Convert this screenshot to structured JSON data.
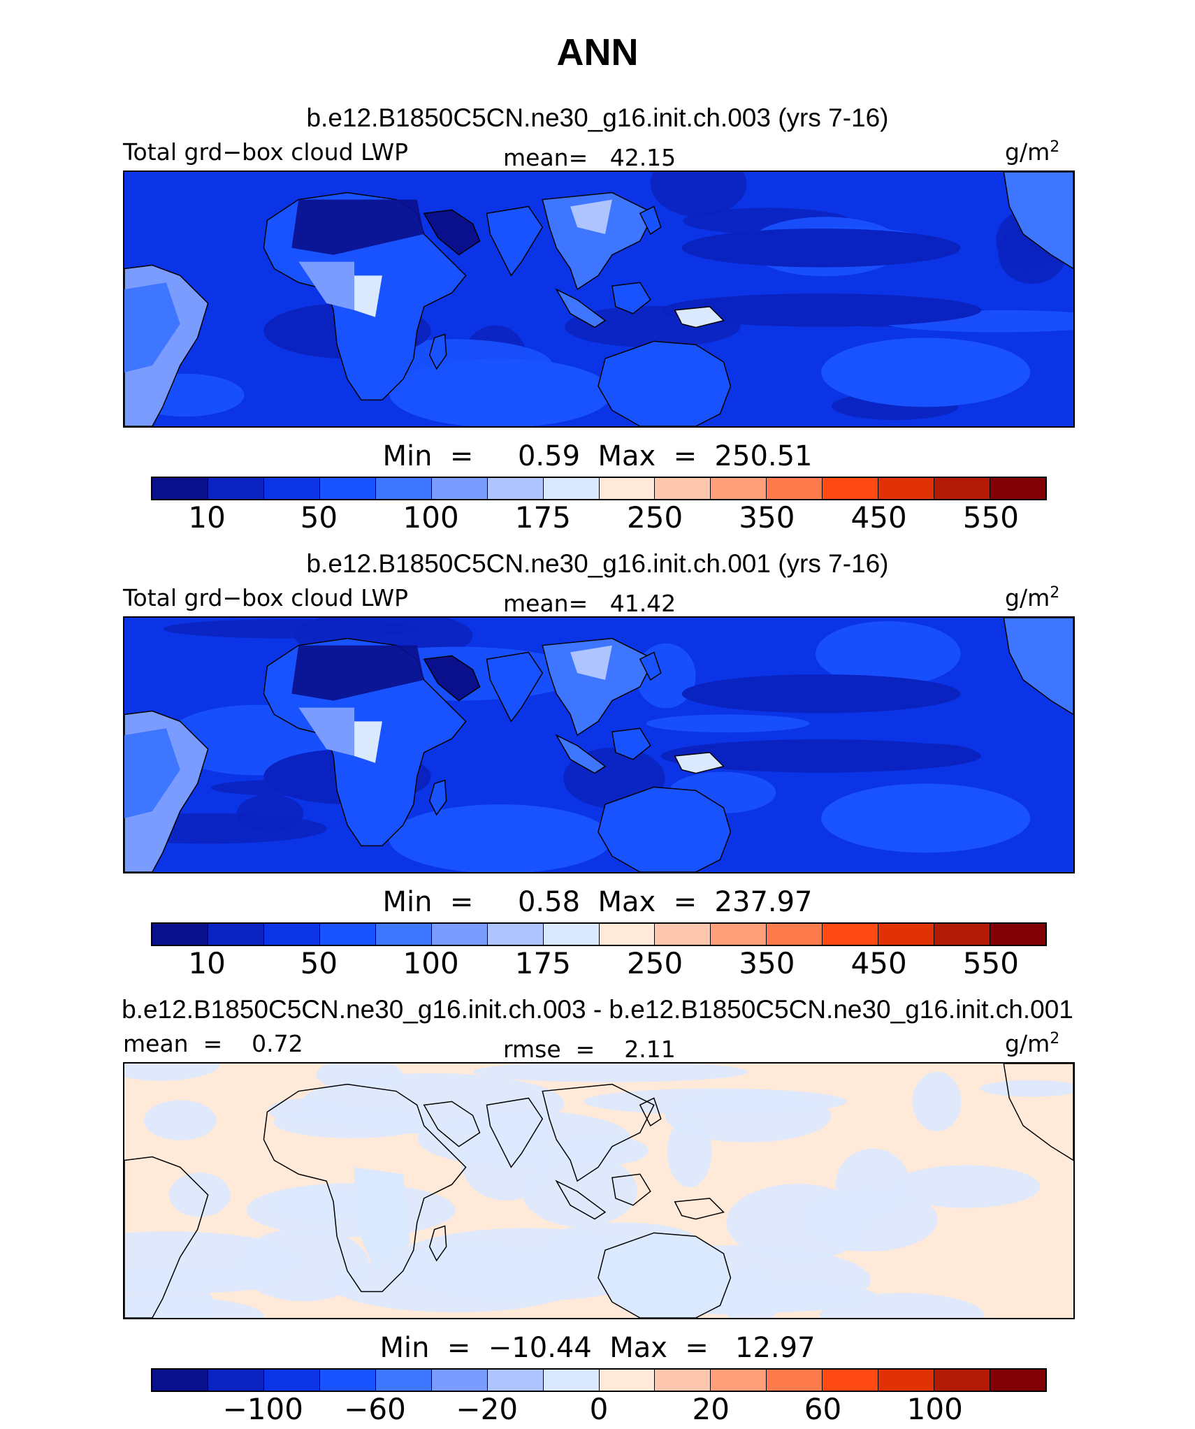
{
  "title": "ANN",
  "palette": [
    "#0a0f8c",
    "#0a23c0",
    "#0a34e6",
    "#1952ff",
    "#3f76ff",
    "#7b9cff",
    "#adc4ff",
    "#dbe9ff",
    "#ffe9d8",
    "#ffc8ae",
    "#ffa07a",
    "#ff7a4c",
    "#ff4a14",
    "#e03205",
    "#b31a05",
    "#800005"
  ],
  "panels": [
    {
      "case_title": "b.e12.B1850C5CN.ne30_g16.init.ch.003 (yrs 7-16)",
      "left_label": "Total grd−box cloud LWP",
      "center_label": "mean=   42.15",
      "units_label": "g/m",
      "units_sup": "2",
      "minmax": "Min  =     0.59  Max  =  250.51",
      "ticks": [
        "10",
        "50",
        "100",
        "175",
        "250",
        "350",
        "450",
        "550"
      ],
      "field": "abs"
    },
    {
      "case_title": "b.e12.B1850C5CN.ne30_g16.init.ch.001 (yrs 7-16)",
      "left_label": "Total grd−box cloud LWP",
      "center_label": "mean=   41.42",
      "units_label": "g/m",
      "units_sup": "2",
      "minmax": "Min  =     0.58  Max  =  237.97",
      "ticks": [
        "10",
        "50",
        "100",
        "175",
        "250",
        "350",
        "450",
        "550"
      ],
      "field": "abs"
    },
    {
      "case_title": "b.e12.B1850C5CN.ne30_g16.init.ch.003 - b.e12.B1850C5CN.ne30_g16.init.ch.001",
      "left_label": "mean  =    0.72",
      "center_label": "rmse  =    2.11",
      "units_label": "g/m",
      "units_sup": "2",
      "minmax": "Min  =  −10.44  Max  =   12.97",
      "ticks": [
        "−100",
        "−60",
        "−20",
        "0",
        "20",
        "60",
        "100"
      ],
      "field": "diff"
    }
  ]
}
